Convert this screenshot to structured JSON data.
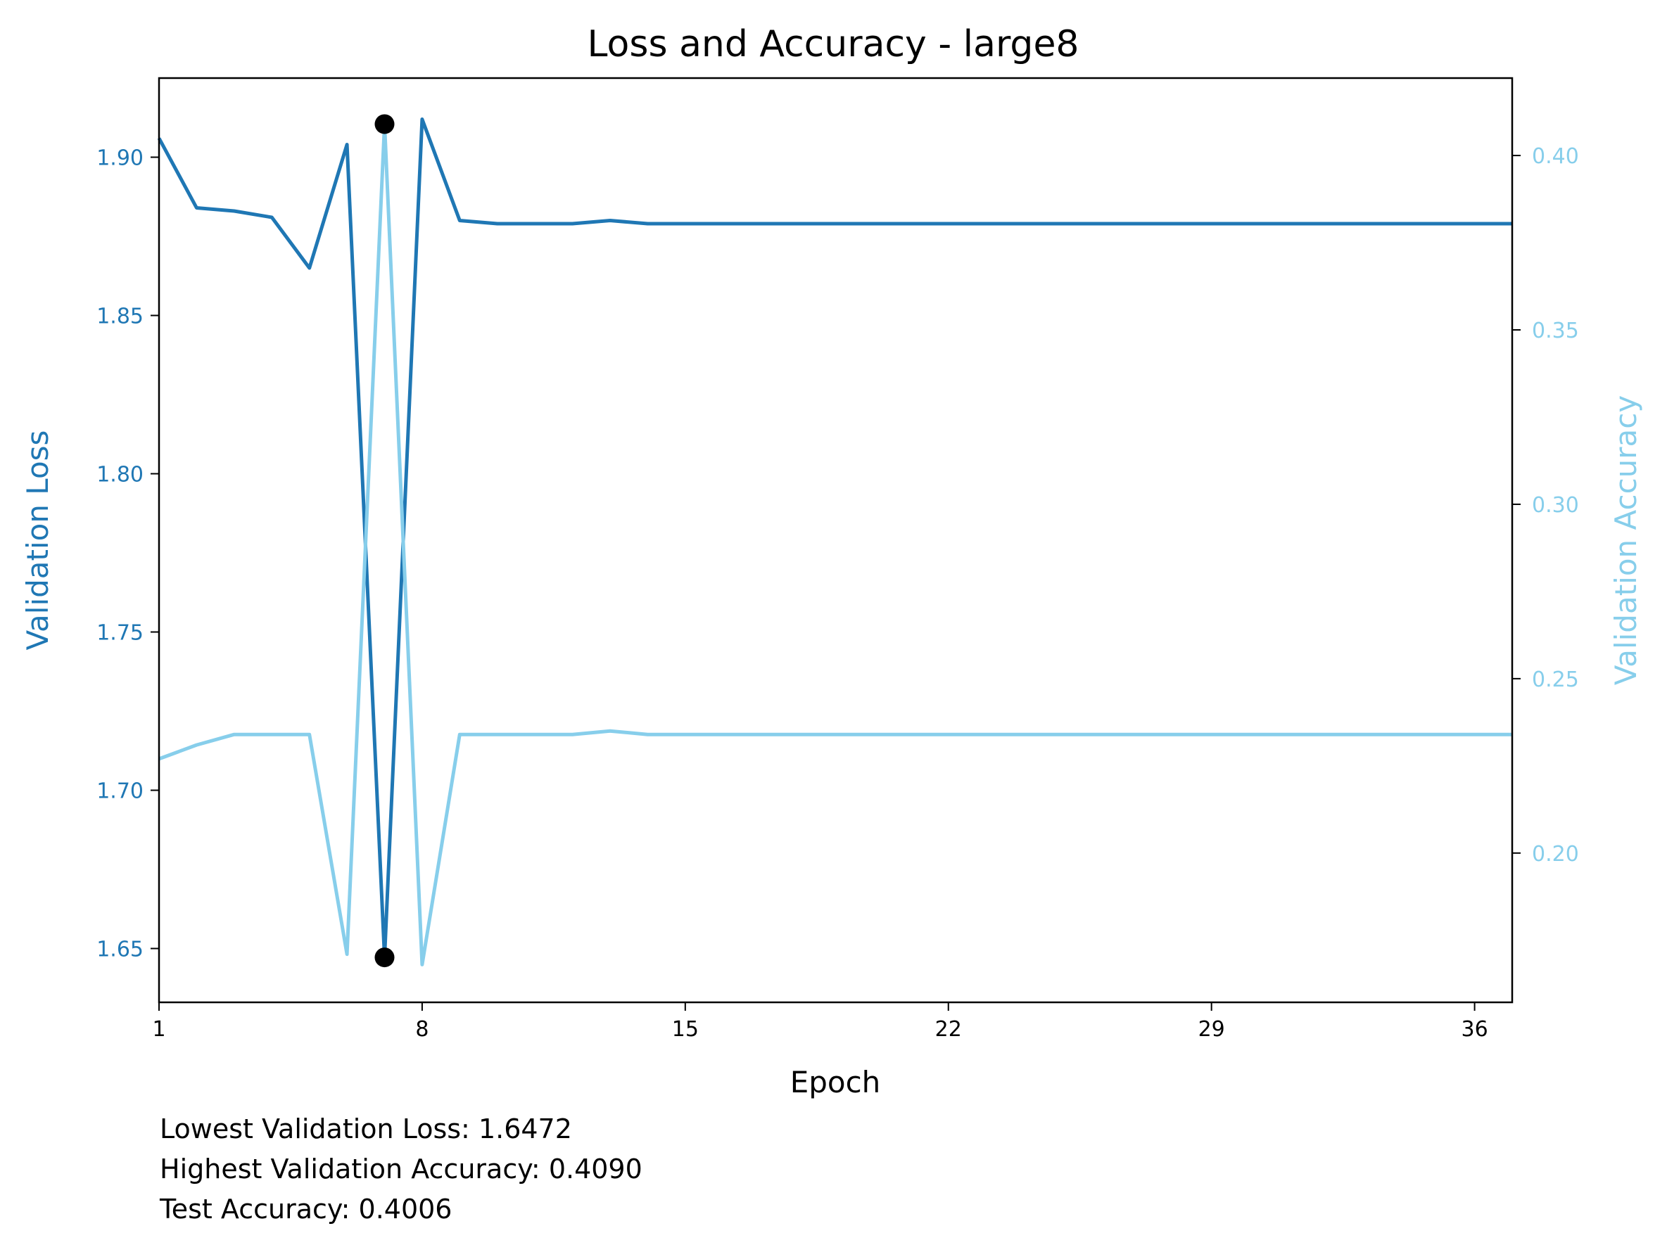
{
  "chart_data": {
    "type": "line",
    "title": "Loss and Accuracy - large8",
    "xlabel": "Epoch",
    "ylabel_left": "Validation Loss",
    "ylabel_right": "Validation Accuracy",
    "xlim": [
      1,
      37
    ],
    "ylim_left": [
      1.633,
      1.925
    ],
    "ylim_right": [
      0.1572,
      0.4222
    ],
    "x_ticks": [
      1,
      8,
      15,
      22,
      29,
      36
    ],
    "y_ticks_left": [
      1.65,
      1.7,
      1.75,
      1.8,
      1.85,
      1.9
    ],
    "y_ticks_right": [
      0.2,
      0.25,
      0.3,
      0.35,
      0.4
    ],
    "grid": false,
    "colors": {
      "loss": "#1f77b4",
      "accuracy": "#87ceeb",
      "marker": "#000000"
    },
    "x": [
      1,
      2,
      3,
      4,
      5,
      6,
      7,
      8,
      9,
      10,
      11,
      12,
      13,
      14,
      15,
      16,
      17,
      18,
      19,
      20,
      21,
      22,
      23,
      24,
      25,
      26,
      27,
      28,
      29,
      30,
      31,
      32,
      33,
      34,
      35,
      36,
      37
    ],
    "series": [
      {
        "name": "Validation Loss",
        "axis": "left",
        "values": [
          1.906,
          1.884,
          1.883,
          1.881,
          1.865,
          1.904,
          1.6472,
          1.912,
          1.88,
          1.879,
          1.879,
          1.879,
          1.88,
          1.879,
          1.879,
          1.879,
          1.879,
          1.879,
          1.879,
          1.879,
          1.879,
          1.879,
          1.879,
          1.879,
          1.879,
          1.879,
          1.879,
          1.879,
          1.879,
          1.879,
          1.879,
          1.879,
          1.879,
          1.879,
          1.879,
          1.879,
          1.879
        ]
      },
      {
        "name": "Validation Accuracy",
        "axis": "right",
        "values": [
          0.227,
          0.231,
          0.234,
          0.234,
          0.234,
          0.171,
          0.409,
          0.168,
          0.234,
          0.234,
          0.234,
          0.234,
          0.235,
          0.234,
          0.234,
          0.234,
          0.234,
          0.234,
          0.234,
          0.234,
          0.234,
          0.234,
          0.234,
          0.234,
          0.234,
          0.234,
          0.234,
          0.234,
          0.234,
          0.234,
          0.234,
          0.234,
          0.234,
          0.234,
          0.234,
          0.234,
          0.234
        ]
      }
    ],
    "markers": [
      {
        "x": 7,
        "value": 1.6472,
        "axis": "left"
      },
      {
        "x": 7,
        "value": 0.409,
        "axis": "right"
      }
    ],
    "annotations": [
      "Lowest Validation Loss: 1.6472",
      "Highest Validation Accuracy: 0.4090",
      "Test Accuracy: 0.4006"
    ]
  }
}
